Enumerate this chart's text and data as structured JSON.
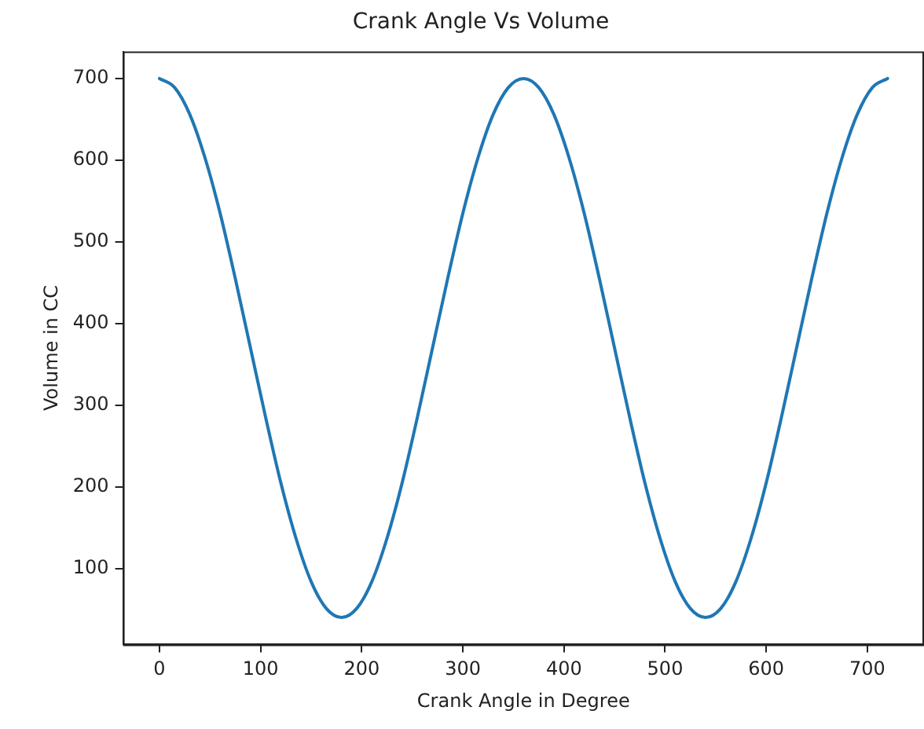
{
  "chart_data": {
    "type": "line",
    "title": "Crank Angle Vs Volume",
    "xlabel": "Crank Angle in Degree",
    "ylabel": "Volume in CC",
    "x": [
      0,
      15,
      30,
      45,
      60,
      75,
      90,
      105,
      120,
      135,
      150,
      165,
      180,
      195,
      210,
      225,
      240,
      255,
      270,
      285,
      300,
      315,
      330,
      345,
      360,
      375,
      390,
      405,
      420,
      435,
      450,
      465,
      480,
      495,
      510,
      525,
      540,
      555,
      570,
      585,
      600,
      615,
      630,
      645,
      660,
      675,
      690,
      705,
      720
    ],
    "series": [
      {
        "color": "#1f77b4",
        "values": [
          700,
          689,
          656,
          603,
          535,
          455,
          370,
          285,
          205,
          137,
          84,
          51,
          40,
          51,
          84,
          137,
          205,
          285,
          370,
          455,
          535,
          603,
          656,
          689,
          700,
          689,
          656,
          603,
          535,
          455,
          370,
          285,
          205,
          137,
          84,
          51,
          40,
          51,
          84,
          137,
          205,
          285,
          370,
          455,
          535,
          603,
          656,
          689,
          700
        ]
      }
    ],
    "xlim": [
      -36,
      756
    ],
    "xticks": [
      0,
      100,
      200,
      300,
      400,
      500,
      600,
      700
    ],
    "ylim": [
      7,
      733
    ],
    "yticks": [
      100,
      200,
      300,
      400,
      500,
      600,
      700
    ],
    "grid": false
  }
}
